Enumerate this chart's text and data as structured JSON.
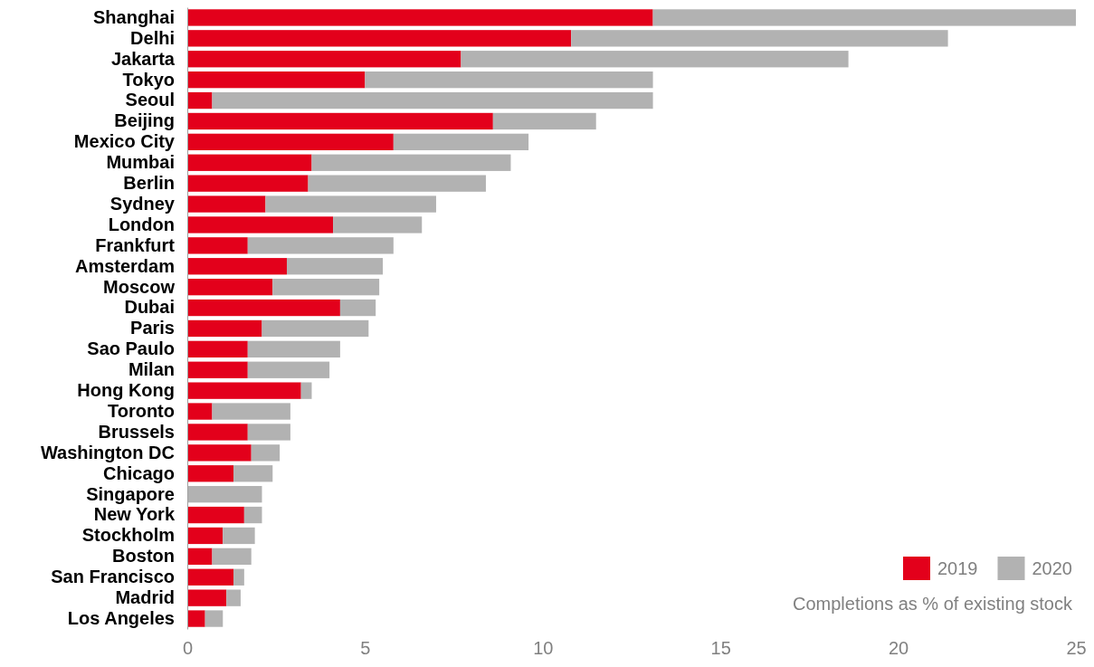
{
  "chart_data": {
    "type": "bar",
    "orientation": "horizontal",
    "stacked": true,
    "categories": [
      "Shanghai",
      "Delhi",
      "Jakarta",
      "Tokyo",
      "Seoul",
      "Beijing",
      "Mexico City",
      "Mumbai",
      "Berlin",
      "Sydney",
      "London",
      "Frankfurt",
      "Amsterdam",
      "Moscow",
      "Dubai",
      "Paris",
      "Sao Paulo",
      "Milan",
      "Hong Kong",
      "Toronto",
      "Brussels",
      "Washington DC",
      "Chicago",
      "Singapore",
      "New York",
      "Stockholm",
      "Boston",
      "San Francisco",
      "Madrid",
      "Los Angeles"
    ],
    "series": [
      {
        "name": "2019",
        "color": "#e3001b",
        "values": [
          13.1,
          10.8,
          7.7,
          5.0,
          0.7,
          8.6,
          5.8,
          3.5,
          3.4,
          2.2,
          4.1,
          1.7,
          2.8,
          2.4,
          4.3,
          2.1,
          1.7,
          1.7,
          3.2,
          0.7,
          1.7,
          1.8,
          1.3,
          0,
          1.6,
          1.0,
          0.7,
          1.3,
          1.1,
          0.5
        ]
      },
      {
        "name": "2020",
        "color": "#b2b2b2",
        "values": [
          11.9,
          10.6,
          10.9,
          8.1,
          12.4,
          2.9,
          3.8,
          5.6,
          5.0,
          4.8,
          2.5,
          4.1,
          2.7,
          3.0,
          1.0,
          3.0,
          2.6,
          2.3,
          0.3,
          2.2,
          1.2,
          0.8,
          1.1,
          2.1,
          0.5,
          0.9,
          1.1,
          0.3,
          0.4,
          0.5
        ]
      }
    ],
    "xlim": [
      0,
      25
    ],
    "xticks": [
      0,
      5,
      10,
      15,
      20,
      25
    ],
    "grid": false,
    "legend": "bottom right",
    "annotations": [
      "Completions as % of existing stock"
    ]
  }
}
